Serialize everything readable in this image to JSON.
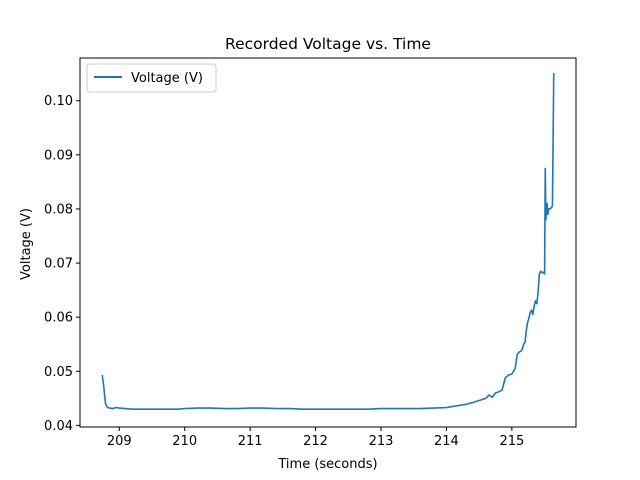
{
  "chart_data": {
    "type": "line",
    "title": "Recorded Voltage vs. Time",
    "xlabel": "Time (seconds)",
    "ylabel": "Voltage (V)",
    "xlim": [
      208.4,
      215.98
    ],
    "ylim": [
      0.0397,
      0.1079
    ],
    "xticks": [
      209,
      210,
      211,
      212,
      213,
      214,
      215
    ],
    "yticks": [
      0.04,
      0.05,
      0.06,
      0.07,
      0.08,
      0.09,
      0.1
    ],
    "ytick_labels": [
      "0.04",
      "0.05",
      "0.06",
      "0.07",
      "0.08",
      "0.09",
      "0.10"
    ],
    "grid": false,
    "legend_position": "top-left",
    "series": [
      {
        "name": "Voltage (V)",
        "color": "#1f77b4",
        "x": [
          208.74,
          208.76,
          208.79,
          208.82,
          208.85,
          208.9,
          208.95,
          209.0,
          209.1,
          209.2,
          209.35,
          209.5,
          209.7,
          209.9,
          210.0,
          210.2,
          210.4,
          210.6,
          210.8,
          211.0,
          211.2,
          211.4,
          211.6,
          211.8,
          212.0,
          212.2,
          212.4,
          212.6,
          212.8,
          213.0,
          213.2,
          213.4,
          213.6,
          213.8,
          214.0,
          214.1,
          214.2,
          214.3,
          214.4,
          214.5,
          214.6,
          214.65,
          214.7,
          214.75,
          214.8,
          214.85,
          214.9,
          214.95,
          215.0,
          215.05,
          215.08,
          215.1,
          215.12,
          215.15,
          215.18,
          215.2,
          215.22,
          215.24,
          215.26,
          215.28,
          215.3,
          215.32,
          215.34,
          215.36,
          215.38,
          215.4,
          215.42,
          215.44,
          215.46,
          215.48,
          215.5,
          215.51,
          215.52,
          215.53,
          215.54,
          215.55,
          215.56,
          215.58,
          215.6,
          215.62,
          215.64,
          215.65
        ],
        "y": [
          0.0493,
          0.0475,
          0.044,
          0.0433,
          0.0432,
          0.0431,
          0.0433,
          0.0432,
          0.0431,
          0.043,
          0.043,
          0.043,
          0.043,
          0.043,
          0.0431,
          0.0432,
          0.0432,
          0.0431,
          0.0431,
          0.0432,
          0.0432,
          0.0431,
          0.0431,
          0.043,
          0.043,
          0.043,
          0.043,
          0.043,
          0.043,
          0.0431,
          0.0431,
          0.0431,
          0.0431,
          0.0432,
          0.0433,
          0.0435,
          0.0437,
          0.0439,
          0.0442,
          0.0446,
          0.045,
          0.0456,
          0.0452,
          0.046,
          0.0462,
          0.0465,
          0.0488,
          0.0493,
          0.0495,
          0.0505,
          0.053,
          0.0534,
          0.0536,
          0.0538,
          0.055,
          0.0553,
          0.0575,
          0.059,
          0.0598,
          0.0609,
          0.0613,
          0.0605,
          0.062,
          0.063,
          0.0625,
          0.0645,
          0.068,
          0.0685,
          0.0682,
          0.0683,
          0.068,
          0.0875,
          0.078,
          0.08,
          0.081,
          0.079,
          0.08,
          0.08,
          0.0802,
          0.0805,
          0.105,
          0.105
        ]
      }
    ]
  }
}
